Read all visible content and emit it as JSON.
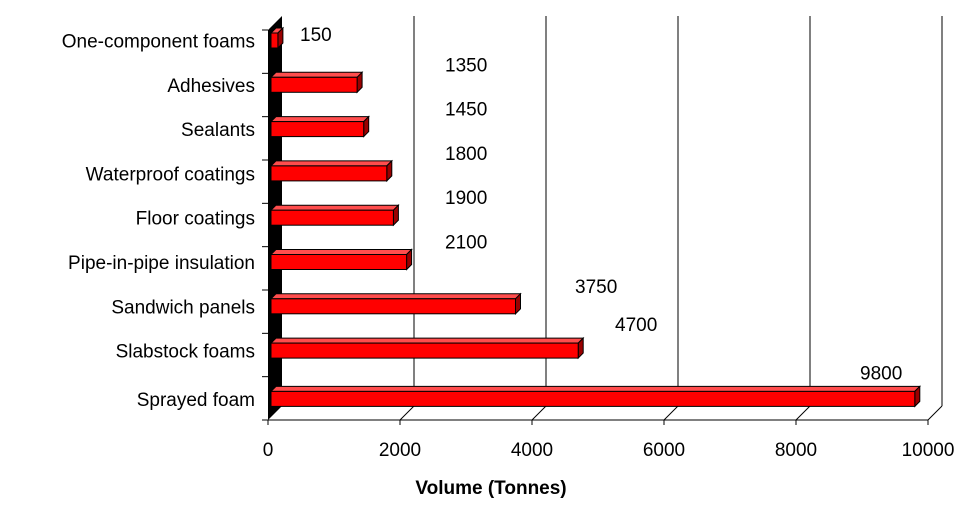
{
  "chart_data": {
    "type": "bar",
    "orientation": "horizontal",
    "style": "3d",
    "categories": [
      "One-component foams",
      "Adhesives",
      "Sealants",
      "Waterproof coatings",
      "Floor coatings",
      "Pipe-in-pipe insulation",
      "Sandwich panels",
      "Slabstock foams",
      "Sprayed foam"
    ],
    "values": [
      150,
      1350,
      1450,
      1800,
      1900,
      2100,
      3750,
      4700,
      9800
    ],
    "data_labels": [
      "150",
      "1350",
      "1450",
      "1800",
      "1900",
      "2100",
      "3750",
      "4700",
      "9800"
    ],
    "title": "",
    "xlabel": "Volume (Tonnes)",
    "ylabel": "",
    "xlim": [
      0,
      10000
    ],
    "xticks": [
      0,
      2000,
      4000,
      6000,
      8000,
      10000
    ],
    "xtick_labels": [
      "0",
      "2000",
      "4000",
      "6000",
      "8000",
      "10000"
    ],
    "gridlines": "vertical",
    "legend": "none",
    "colors": {
      "bar_front": "#ff0000",
      "bar_top": "#ff4d4d",
      "bar_side": "#9a0000",
      "outline": "#000000",
      "gridline": "#000000",
      "background": "#ffffff"
    }
  }
}
